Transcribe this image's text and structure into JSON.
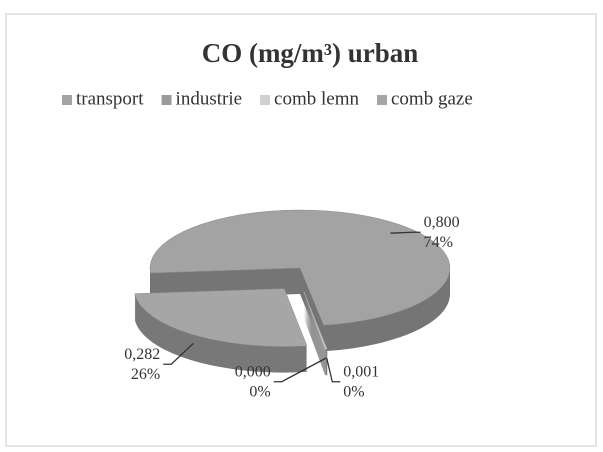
{
  "chart_data": {
    "type": "pie",
    "title": "CO (mg/m³) urban",
    "categories": [
      "transport",
      "industrie",
      "comb lemn",
      "comb gaze"
    ],
    "values": [
      0.8,
      0.001,
      0.0,
      0.282
    ],
    "value_labels": [
      "0,800",
      "0,001",
      "0,000",
      "0,282"
    ],
    "percent_labels": [
      "74%",
      "0%",
      "0%",
      "26%"
    ],
    "colors": [
      "#a3a3a3",
      "#9a9a9a",
      "#d0d0d0",
      "#a6a6a6"
    ],
    "legend": "top"
  }
}
